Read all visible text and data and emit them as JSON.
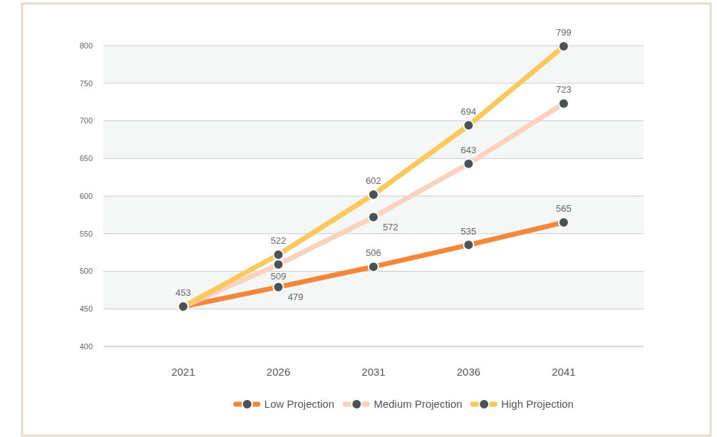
{
  "chart_data": {
    "type": "line",
    "categories": [
      "2021",
      "2026",
      "2031",
      "2036",
      "2041"
    ],
    "series": [
      {
        "name": "Low Projection",
        "color": "#f5873c",
        "values": [
          453,
          479,
          506,
          535,
          565
        ],
        "value_labels": [
          "453",
          "479",
          "506",
          "535",
          "565"
        ]
      },
      {
        "name": "Medium Projection",
        "color": "#f9d3c0",
        "values": [
          453,
          509,
          572,
          643,
          723
        ],
        "value_labels": [
          null,
          "509",
          "572",
          "643",
          "723"
        ]
      },
      {
        "name": "High Projection",
        "color": "#f7c95e",
        "values": [
          453,
          522,
          602,
          694,
          799
        ],
        "value_labels": [
          null,
          "522",
          "602",
          "694",
          "799"
        ]
      }
    ],
    "ylim": [
      400,
      800
    ],
    "yticks": [
      400,
      450,
      500,
      550,
      600,
      650,
      700,
      750,
      800
    ],
    "grid": "y",
    "legend": "bottom",
    "marker": "circle",
    "line_style": "solid"
  }
}
